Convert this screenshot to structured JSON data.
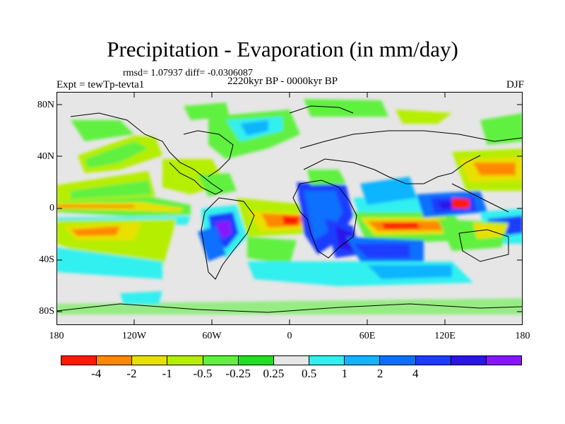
{
  "title": "Precipitation - Evaporation (in mm/day)",
  "stats": "rmsd= 1.07937 diff= -0.0306087",
  "period": "2220kyr BP - 0000kyr BP",
  "expt": "Expt = tewTp-tevta1",
  "season": "DJF",
  "lat_labels": [
    "80N",
    "40N",
    "0",
    "40S",
    "80S"
  ],
  "lon_labels": [
    "180",
    "120W",
    "60W",
    "0",
    "60E",
    "120E",
    "180"
  ],
  "colorbar": {
    "labels": [
      "-4",
      "-2",
      "-1",
      "-0.5",
      "-0.25",
      "0.25",
      "0.5",
      "1",
      "2",
      "4"
    ],
    "colors": [
      "#ff1a00",
      "#ff8800",
      "#e8e000",
      "#b6ee00",
      "#60f040",
      "#20e020",
      "#e6e6e6",
      "#30f0f0",
      "#10b4ff",
      "#0a70ff",
      "#1e3cff",
      "#2a14e8",
      "#8a14ff"
    ]
  },
  "colors": {
    "background": "#e6e6e6",
    "coast": "#000000"
  }
}
